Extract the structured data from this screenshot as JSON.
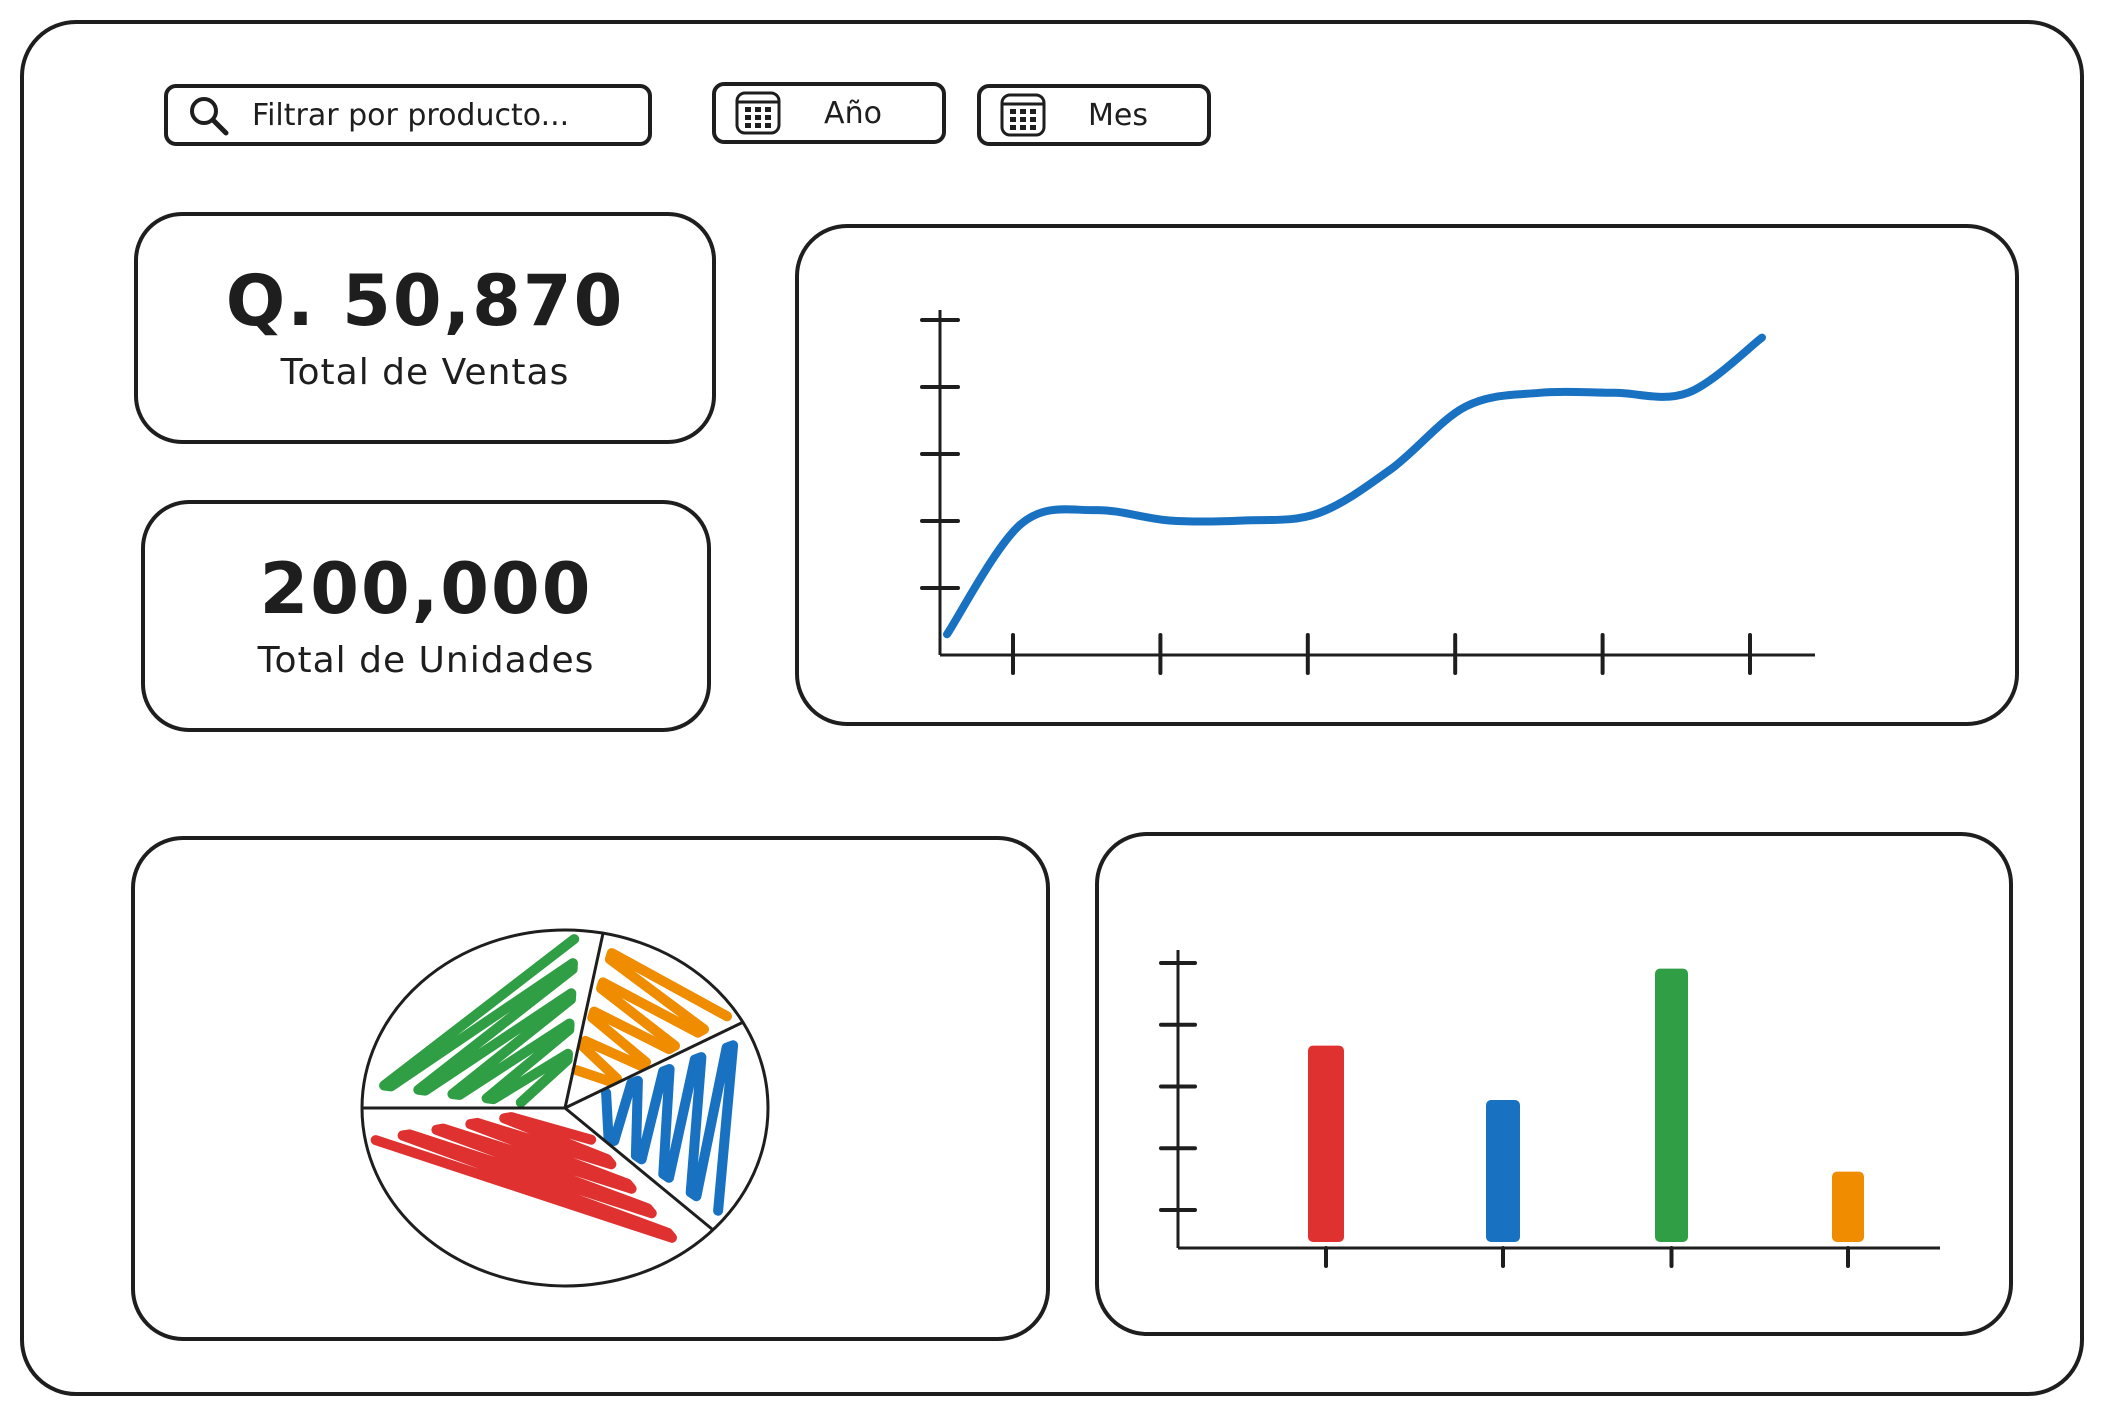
{
  "toolbar": {
    "search_placeholder": "Filtrar por producto...",
    "search_icon": "search-icon",
    "year_label": "Año",
    "month_label": "Mes",
    "calendar_icon": "calendar-icon"
  },
  "kpis": [
    {
      "value": "Q. 50,870",
      "label": "Total de Ventas"
    },
    {
      "value": "200,000",
      "label": "Total de Unidades"
    }
  ],
  "colors": {
    "stroke": "#1e1e1e",
    "blue": "#1971c2",
    "red": "#e03131",
    "green": "#2f9e44",
    "orange": "#f08c00"
  },
  "chart_data": [
    {
      "type": "line",
      "x": [
        0,
        0.5,
        1,
        1.5,
        2,
        2.5,
        3,
        3.5,
        4,
        4.5,
        5,
        5.5
      ],
      "values": [
        0.3,
        1.9,
        2.1,
        1.95,
        1.95,
        2.05,
        2.7,
        3.6,
        3.8,
        3.8,
        3.8,
        4.6
      ],
      "series_color": "#1971c2",
      "y_ticks": 5,
      "x_ticks": 6,
      "xlim": [
        0,
        5.5
      ],
      "ylim": [
        0,
        5
      ]
    },
    {
      "type": "pie",
      "values": [
        28,
        14,
        20,
        38
      ],
      "colors": [
        "#2f9e44",
        "#f08c00",
        "#1971c2",
        "#e03131"
      ]
    },
    {
      "type": "bar",
      "values": [
        148,
        107,
        206,
        53
      ],
      "colors": [
        "#e03131",
        "#1971c2",
        "#2f9e44",
        "#f08c00"
      ],
      "ylim": [
        0,
        220
      ],
      "y_ticks": 5
    }
  ]
}
